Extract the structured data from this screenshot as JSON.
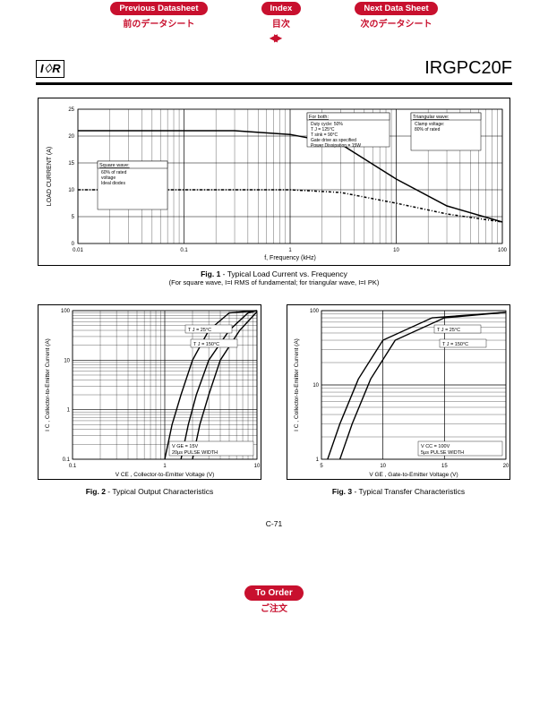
{
  "nav": {
    "prev": {
      "en": "Previous Datasheet",
      "jp": "前のデータシート"
    },
    "index": {
      "en": "Index",
      "jp": "目次"
    },
    "next": {
      "en": "Next Data Sheet",
      "jp": "次のデータシート"
    }
  },
  "logo": "I♢R",
  "part_number": "IRGPC20F",
  "fig1": {
    "type": "line-loglinear",
    "title_bold": "Fig. 1",
    "title_rest": " - Typical Load Current vs. Frequency",
    "subcaption": "(For square wave, I=I RMS of fundamental; for triangular wave, I=I PK)",
    "ylabel": "LOAD CURRENT (A)",
    "xlabel": "f, Frequency (kHz)",
    "xlim": [
      0.01,
      100
    ],
    "xticks": [
      0.01,
      0.1,
      1,
      10,
      100
    ],
    "ylim": [
      0,
      25
    ],
    "yticks": [
      0,
      5,
      10,
      15,
      20,
      25
    ],
    "series": [
      {
        "name": "sq",
        "color": "#000",
        "width": 1.5,
        "points": [
          [
            0.01,
            21
          ],
          [
            0.3,
            21
          ],
          [
            1,
            20.3
          ],
          [
            3,
            18.5
          ],
          [
            10,
            12
          ],
          [
            30,
            7
          ],
          [
            100,
            4
          ]
        ]
      },
      {
        "name": "tri",
        "color": "#000",
        "width": 1.5,
        "dash": "3,2,1,2",
        "points": [
          [
            0.01,
            10
          ],
          [
            1,
            10
          ],
          [
            3,
            9.5
          ],
          [
            10,
            7.5
          ],
          [
            30,
            5.5
          ],
          [
            100,
            4
          ]
        ]
      }
    ],
    "boxes": {
      "sq": {
        "title": "Square wave:",
        "lines": [
          "60% of rated",
          "voltage",
          "Ideal diodes"
        ]
      },
      "both": {
        "title": "For both:",
        "lines": [
          "Duty cycle: 50%",
          "T J = 125°C",
          "T sink = 90°C",
          "Gate drive as specified",
          "Power Dissipation = 15W"
        ]
      },
      "tri": {
        "title": "Triangular wave:",
        "lines": [
          "Clamp voltage:",
          "80% of rated"
        ]
      }
    },
    "grid_color": "#000",
    "bg": "#ffffff"
  },
  "fig2": {
    "type": "loglog",
    "title_bold": "Fig. 2",
    "title_rest": " - Typical Output Characteristics",
    "ylabel": "I C , Collector-to-Emitter Current (A)",
    "xlabel": "V CE  , Collector-to-Emitter Voltage (V)",
    "xlim": [
      0.1,
      10
    ],
    "xticks": [
      0.1,
      1,
      10
    ],
    "ylim": [
      0.1,
      100
    ],
    "yticks": [
      0.1,
      1,
      10,
      100
    ],
    "curve_labels": [
      "T J = 25°C",
      "T J = 150°C"
    ],
    "note": [
      "V GE = 15V",
      "20μs PULSE WIDTH"
    ],
    "series": [
      {
        "color": "#000",
        "width": 1.4,
        "points": [
          [
            1.0,
            0.1
          ],
          [
            1.2,
            0.5
          ],
          [
            1.5,
            2
          ],
          [
            2,
            10
          ],
          [
            3,
            40
          ],
          [
            5,
            90
          ],
          [
            10,
            100
          ]
        ]
      },
      {
        "color": "#000",
        "width": 1.4,
        "points": [
          [
            1.5,
            0.1
          ],
          [
            1.8,
            0.5
          ],
          [
            2.2,
            2
          ],
          [
            3,
            10
          ],
          [
            5,
            40
          ],
          [
            8,
            90
          ],
          [
            10,
            100
          ]
        ]
      },
      {
        "color": "#000",
        "width": 1.4,
        "points": [
          [
            2.0,
            0.1
          ],
          [
            2.4,
            0.5
          ],
          [
            3,
            2
          ],
          [
            4,
            10
          ],
          [
            6.5,
            40
          ],
          [
            10,
            95
          ]
        ]
      }
    ]
  },
  "fig3": {
    "type": "semilog-y",
    "title_bold": "Fig. 3",
    "title_rest": " - Typical Transfer Characteristics",
    "ylabel": "I C , Collector-to-Emitter Current (A)",
    "xlabel": "V GE , Gate-to-Emitter Voltage (V)",
    "xlim": [
      5,
      20
    ],
    "xticks": [
      5,
      10,
      15,
      20
    ],
    "ylim": [
      1,
      100
    ],
    "yticks": [
      1,
      10,
      100
    ],
    "curve_labels": [
      "T J = 25°C",
      "T J = 150°C"
    ],
    "note": [
      "V CC = 100V",
      "5μs PULSE WIDTH"
    ],
    "series": [
      {
        "color": "#000",
        "width": 1.4,
        "points": [
          [
            5.5,
            1
          ],
          [
            6.5,
            3
          ],
          [
            8,
            12
          ],
          [
            10,
            40
          ],
          [
            14,
            80
          ],
          [
            20,
            95
          ]
        ]
      },
      {
        "color": "#000",
        "width": 1.4,
        "points": [
          [
            6.5,
            1
          ],
          [
            7.5,
            3
          ],
          [
            9,
            12
          ],
          [
            11,
            40
          ],
          [
            15,
            80
          ],
          [
            20,
            95
          ]
        ]
      }
    ]
  },
  "page": "C-71",
  "order": {
    "en": "To Order",
    "jp": "ご注文"
  }
}
